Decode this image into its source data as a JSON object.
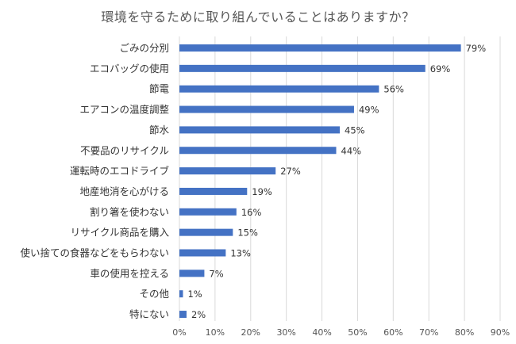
{
  "chart_data": {
    "type": "bar",
    "orientation": "horizontal",
    "title": "環境を守るために取り組んでいることはありますか？",
    "categories": [
      "ごみの分別",
      "エコバッグの使用",
      "節電",
      "エアコンの温度調整",
      "節水",
      "不要品のリサイクル",
      "運転時のエコドライブ",
      "地産地消を心がける",
      "割り箸を使わない",
      "リサイクル商品を購入",
      "使い捨ての食器などをもらわない",
      "車の使用を控える",
      "その他",
      "特にない"
    ],
    "values": [
      79,
      69,
      56,
      49,
      45,
      44,
      27,
      19,
      16,
      15,
      13,
      7,
      1,
      2
    ],
    "value_labels": [
      "79%",
      "69%",
      "56%",
      "49%",
      "45%",
      "44%",
      "27%",
      "19%",
      "16%",
      "15%",
      "13%",
      "7%",
      "1%",
      "2%"
    ],
    "x_ticks": [
      "0%",
      "10%",
      "20%",
      "30%",
      "40%",
      "50%",
      "60%",
      "70%",
      "80%",
      "90%"
    ],
    "xlim": [
      0,
      90
    ],
    "grid": "vertical",
    "legend": "none",
    "bar_color": "#4472C4",
    "grid_color": "#D9D9D9"
  }
}
